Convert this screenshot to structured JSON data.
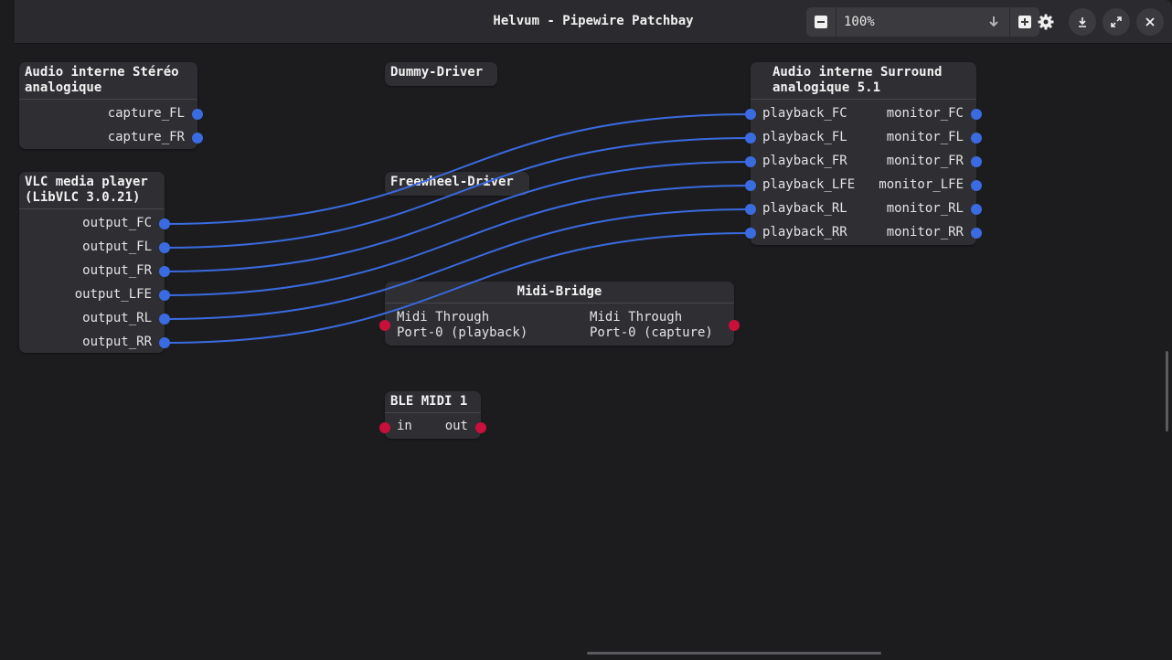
{
  "window": {
    "title": "Helvum - Pipewire Patchbay"
  },
  "toolbar": {
    "zoom_value": "100%",
    "zoom_out_icon": "minus-icon",
    "zoom_in_icon": "plus-icon",
    "dropdown_icon": "arrow-down-icon",
    "settings_icon": "gear-icon",
    "minimize_icon": "minimize-icon",
    "maximize_icon": "maximize-icon",
    "close_icon": "close-icon"
  },
  "colors": {
    "audio_port": "#3a6be0",
    "midi_port": "#c8103a",
    "link": "#3a6be0"
  },
  "nodes": {
    "stereo": {
      "title": "Audio interne Stéréo\nanalogique",
      "ports": [
        "capture_FL",
        "capture_FR"
      ]
    },
    "dummy": {
      "title": "Dummy-Driver"
    },
    "freewheel": {
      "title": "Freewheel-Driver"
    },
    "surround": {
      "title": "Audio interne Surround\nanalogique 5.1",
      "inputs": [
        "playback_FC",
        "playback_FL",
        "playback_FR",
        "playback_LFE",
        "playback_RL",
        "playback_RR"
      ],
      "outputs": [
        "monitor_FC",
        "monitor_FL",
        "monitor_FR",
        "monitor_LFE",
        "monitor_RL",
        "monitor_RR"
      ]
    },
    "vlc": {
      "title": "VLC media player\n(LibVLC 3.0.21)",
      "ports": [
        "output_FC",
        "output_FL",
        "output_FR",
        "output_LFE",
        "output_RL",
        "output_RR"
      ]
    },
    "midi_bridge": {
      "title": "Midi-Bridge",
      "input": "Midi Through\nPort-0 (playback)",
      "output": "Midi Through\nPort-0 (capture)"
    },
    "ble_midi": {
      "title": "BLE MIDI 1",
      "input": "in",
      "output": "out"
    }
  },
  "links": [
    {
      "from": "output_FC",
      "to": "playback_FC"
    },
    {
      "from": "output_FL",
      "to": "playback_FL"
    },
    {
      "from": "output_FR",
      "to": "playback_FR"
    },
    {
      "from": "output_LFE",
      "to": "playback_LFE"
    },
    {
      "from": "output_RL",
      "to": "playback_RL"
    },
    {
      "from": "output_RR",
      "to": "playback_RR"
    }
  ]
}
